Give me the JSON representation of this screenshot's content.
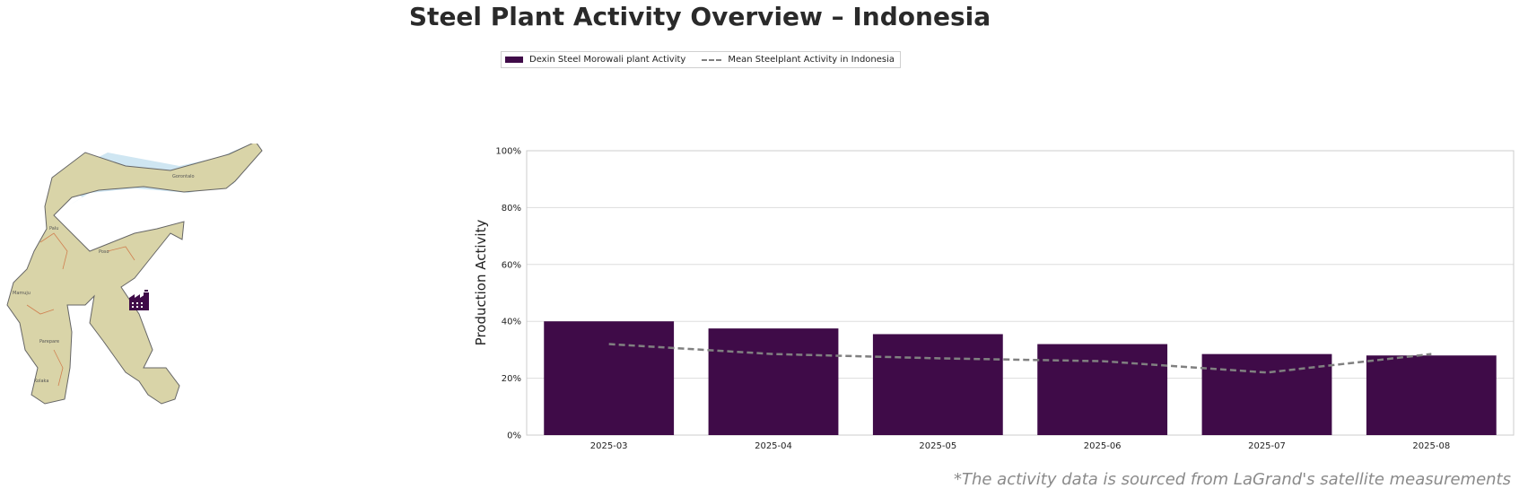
{
  "title": "Steel Plant Activity Overview – Indonesia",
  "legend": {
    "bar_label": "Dexin Steel Morowali plant Activity",
    "line_label": "Mean Steelplant Activity in Indonesia"
  },
  "footnote": "*The activity data is sourced from LaGrand's satellite measurements",
  "map": {
    "labels": [
      "Gorontalo",
      "Palu",
      "Mamuju",
      "Poso",
      "Parepare",
      "Kolaka"
    ],
    "marker_icon": "factory-icon",
    "colors": {
      "land": "#d9d4a8",
      "water": "#cfe6f2",
      "marker": "#3f0b48"
    }
  },
  "colors": {
    "bar": "#3f0b48",
    "line": "#808080",
    "grid": "#dddddd"
  },
  "chart_data": {
    "type": "bar",
    "categories": [
      "2025-03",
      "2025-04",
      "2025-05",
      "2025-06",
      "2025-07",
      "2025-08"
    ],
    "series": [
      {
        "name": "Dexin Steel Morowali plant Activity",
        "type": "bar",
        "values": [
          40,
          37.5,
          35.5,
          32,
          28.5,
          28
        ]
      },
      {
        "name": "Mean Steelplant Activity in Indonesia",
        "type": "line",
        "style": "dashed",
        "values": [
          32,
          28.5,
          27,
          26,
          22,
          28.5
        ]
      }
    ],
    "ylabel": "Production Activity",
    "xlabel": "",
    "ylim": [
      0,
      100
    ],
    "yticks": [
      "0%",
      "20%",
      "40%",
      "60%",
      "80%",
      "100%"
    ],
    "grid": true
  }
}
